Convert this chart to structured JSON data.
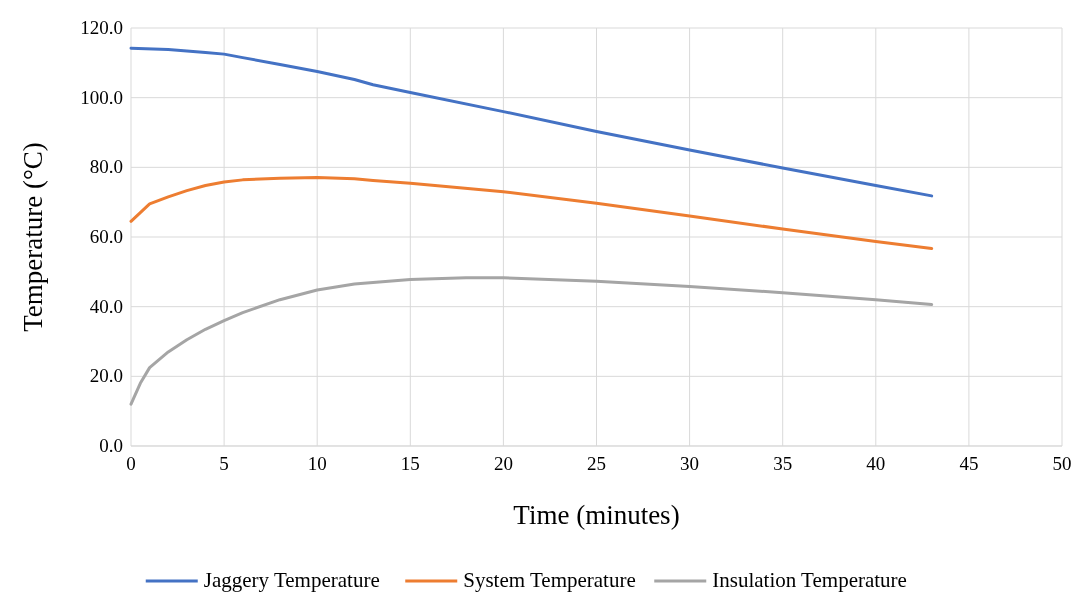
{
  "chart_data": {
    "type": "line",
    "xlabel": "Time (minutes)",
    "ylabel": "Temperature (°C)",
    "xlim": [
      0,
      50
    ],
    "xticks": [
      0,
      5,
      10,
      15,
      20,
      25,
      30,
      35,
      40,
      45,
      50
    ],
    "ylim": [
      0,
      120
    ],
    "yticks": [
      {
        "value": 0,
        "label": "0.0"
      },
      {
        "value": 20,
        "label": "20.0"
      },
      {
        "value": 40,
        "label": "40.0"
      },
      {
        "value": 60,
        "label": "60.0"
      },
      {
        "value": 80,
        "label": "80.0"
      },
      {
        "value": 100,
        "label": "100.0"
      },
      {
        "value": 120,
        "label": "120.0"
      }
    ],
    "grid": true,
    "legend": "bottom",
    "series": [
      {
        "name": "Jaggery Temperature",
        "color": "#4472c4",
        "x": [
          0,
          2,
          4,
          5,
          6,
          8,
          10,
          12,
          13,
          15,
          20,
          25,
          30,
          35,
          40,
          43
        ],
        "values": [
          114.2,
          113.8,
          113,
          112.5,
          111.5,
          109.5,
          107.5,
          105.2,
          103.7,
          101.5,
          96,
          90.3,
          85,
          79.8,
          74.8,
          71.8
        ]
      },
      {
        "name": "System Temperature",
        "color": "#ed7d31",
        "x": [
          0,
          0.5,
          1,
          2,
          3,
          4,
          5,
          6,
          8,
          10,
          12,
          13,
          15,
          20,
          25,
          30,
          35,
          40,
          43
        ],
        "values": [
          64.5,
          67,
          69.5,
          71.5,
          73.3,
          74.8,
          75.8,
          76.4,
          76.9,
          77.1,
          76.7,
          76.2,
          75.4,
          73,
          69.7,
          66,
          62.3,
          58.7,
          56.7
        ]
      },
      {
        "name": "Insulation Temperature",
        "color": "#a5a5a5",
        "x": [
          0,
          0.5,
          1,
          2,
          3,
          4,
          5,
          6,
          8,
          10,
          12,
          15,
          18,
          20,
          25,
          30,
          35,
          40,
          43
        ],
        "values": [
          12,
          18,
          22.5,
          27,
          30.5,
          33.5,
          36,
          38.3,
          42,
          44.8,
          46.5,
          47.8,
          48.3,
          48.3,
          47.3,
          45.8,
          44,
          42,
          40.6
        ]
      }
    ]
  }
}
